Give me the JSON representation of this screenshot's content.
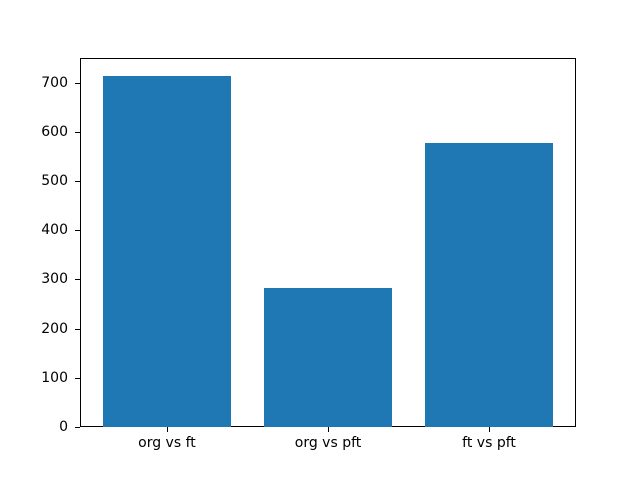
{
  "figure": {
    "background": "#ffffff",
    "title": ""
  },
  "chart_data": {
    "type": "bar",
    "categories": [
      "org vs ft",
      "org vs pft",
      "ft vs pft"
    ],
    "values": [
      714,
      283,
      577
    ],
    "title": "",
    "xlabel": "",
    "ylabel": "",
    "ylim": [
      0,
      750
    ],
    "yticks": [
      0,
      100,
      200,
      300,
      400,
      500,
      600,
      700
    ],
    "bar_color": "#1f77b4",
    "axis_color": "#000000",
    "grid": false,
    "legend": null
  }
}
